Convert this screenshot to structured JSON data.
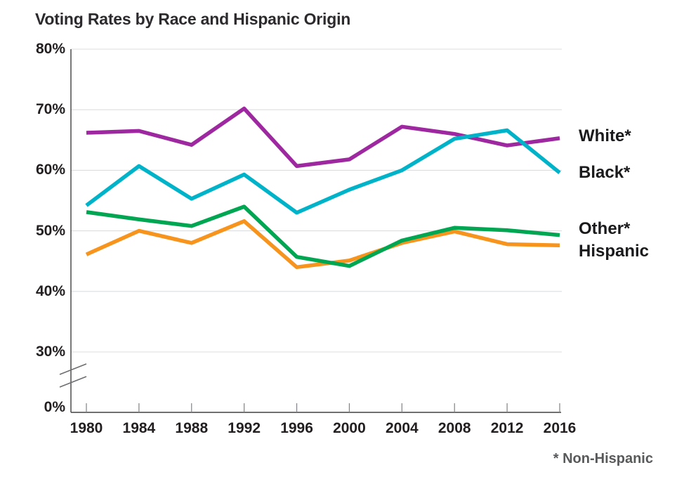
{
  "chart_data": {
    "type": "line",
    "title": "Voting Rates by Race and Hispanic Origin",
    "footnote": "* Non-Hispanic",
    "categories": [
      "1980",
      "1984",
      "1988",
      "1992",
      "1996",
      "2000",
      "2004",
      "2008",
      "2012",
      "2016"
    ],
    "yticks": [
      "80%",
      "70%",
      "60%",
      "50%",
      "40%",
      "30%",
      "0%"
    ],
    "ylim": [
      30,
      80
    ],
    "axis_break_between": [
      "0%",
      "30%"
    ],
    "grid": true,
    "legend_position": "direct labels at right line ends",
    "series": [
      {
        "name": "White*",
        "color": "#9e28a0",
        "values": [
          66.2,
          66.5,
          64.2,
          70.2,
          60.7,
          61.8,
          67.2,
          66.0,
          64.1,
          65.3
        ]
      },
      {
        "name": "Black*",
        "color": "#00b3c9",
        "values": [
          54.2,
          60.7,
          55.3,
          59.3,
          53.0,
          56.8,
          60.0,
          65.2,
          66.6,
          59.6
        ]
      },
      {
        "name": "Other*",
        "color": "#00a651",
        "values": [
          53.1,
          51.9,
          50.8,
          54.0,
          45.7,
          44.2,
          48.4,
          50.5,
          50.1,
          49.3
        ]
      },
      {
        "name": "Hispanic",
        "color": "#f7941e",
        "values": [
          46.1,
          50.0,
          48.0,
          51.6,
          44.0,
          45.1,
          48.0,
          49.9,
          47.8,
          47.6
        ]
      }
    ],
    "colors": {
      "grid": "#dcdddf",
      "axis": "#414042",
      "tick": "#808285",
      "break_mark": "#6d6e71",
      "text": "#231f20",
      "footnote_text": "#58595b"
    }
  }
}
